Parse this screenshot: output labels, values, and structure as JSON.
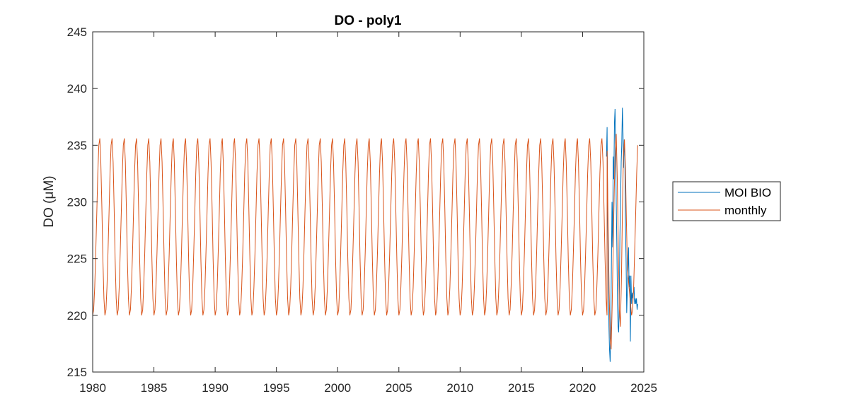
{
  "chart_data": {
    "type": "line",
    "title": "DO - poly1",
    "xlabel": "",
    "ylabel": "DO (μM)",
    "xlim": [
      1980,
      2025
    ],
    "ylim": [
      215,
      245
    ],
    "xticks": [
      1980,
      1985,
      1990,
      1995,
      2000,
      2005,
      2010,
      2015,
      2020,
      2025
    ],
    "yticks": [
      215,
      220,
      225,
      230,
      235,
      240,
      245
    ],
    "grid": false,
    "legend_location": "outside-right",
    "series": [
      {
        "name": "MOI BIO",
        "color": "#0072BD",
        "x": [
          2021.95,
          2022.0,
          2022.05,
          2022.1,
          2022.15,
          2022.2,
          2022.25,
          2022.3,
          2022.35,
          2022.4,
          2022.45,
          2022.5,
          2022.55,
          2022.6,
          2022.65,
          2022.7,
          2022.75,
          2022.8,
          2022.85,
          2022.9,
          2022.95,
          2023.0,
          2023.05,
          2023.1,
          2023.15,
          2023.2,
          2023.25,
          2023.3,
          2023.35,
          2023.4,
          2023.45,
          2023.5,
          2023.55,
          2023.6,
          2023.65,
          2023.7,
          2023.75,
          2023.8,
          2023.85,
          2023.9,
          2023.95,
          2024.0,
          2024.05,
          2024.1,
          2024.15,
          2024.2,
          2024.25,
          2024.3,
          2024.35,
          2024.4,
          2024.45,
          2024.5
        ],
        "y": [
          234.0,
          236.6,
          229.0,
          224.0,
          219.0,
          217.0,
          215.9,
          219.0,
          224.0,
          230.0,
          226.0,
          234.0,
          232.0,
          237.0,
          238.2,
          235.0,
          230.0,
          226.0,
          221.0,
          219.0,
          218.5,
          222.0,
          227.0,
          230.0,
          233.5,
          235.0,
          238.3,
          236.0,
          233.0,
          235.5,
          234.0,
          228.0,
          225.0,
          220.2,
          222.0,
          224.0,
          226.0,
          222.5,
          223.5,
          217.7,
          223.5,
          221.0,
          222.0,
          221.5,
          222.0,
          222.5,
          221.0,
          221.5,
          221.0,
          221.5,
          220.5,
          221.0
        ]
      },
      {
        "name": "monthly",
        "color": "#D95319",
        "x_start": 1980,
        "x_step_years": 0.08333,
        "cycle": [
          220.0,
          220.5,
          222.5,
          225.5,
          229.0,
          232.5,
          235.0,
          235.6,
          233.5,
          229.5,
          225.0,
          221.5
        ],
        "observed_period": {
          "x": [
            2022.0,
            2022.0833,
            2022.1667,
            2022.25,
            2022.3333,
            2022.4167,
            2022.5,
            2022.5833,
            2022.6667,
            2022.75,
            2022.8333,
            2022.9167,
            2023.0,
            2023.0833,
            2023.1667,
            2023.25,
            2023.3333,
            2023.4167,
            2023.5,
            2023.5833,
            2023.6667,
            2023.75,
            2023.8333,
            2023.9167,
            2024.0,
            2024.0833,
            2024.1667,
            2024.25,
            2024.3333,
            2024.4167,
            2024.5
          ],
          "y": [
            234.5,
            228.0,
            222.0,
            218.0,
            217.0,
            221.0,
            226.0,
            231.0,
            234.5,
            236.0,
            232.0,
            226.0,
            220.5,
            219.0,
            223.0,
            229.0,
            234.0,
            235.5,
            233.0,
            228.0,
            224.0,
            223.0,
            222.0,
            221.0,
            220.0,
            220.5,
            222.5,
            225.5,
            229.0,
            232.5,
            235.0
          ]
        }
      }
    ]
  }
}
